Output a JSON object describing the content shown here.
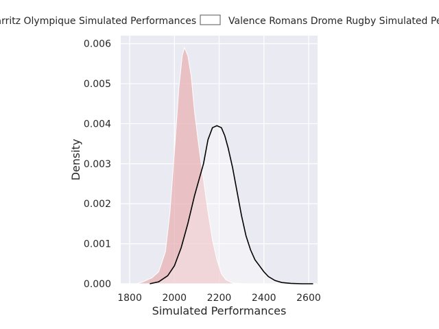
{
  "chart_data": {
    "type": "area",
    "title": "",
    "xlabel": "Simulated Performances",
    "ylabel": "Density",
    "xlim": [
      1760,
      2640
    ],
    "ylim": [
      0,
      0.0062
    ],
    "xticks": [
      1800,
      2000,
      2200,
      2400,
      2600
    ],
    "yticks": [
      0.0,
      0.001,
      0.002,
      0.003,
      0.004,
      0.005,
      0.006
    ],
    "xtick_labels": [
      "1800",
      "2000",
      "2200",
      "2400",
      "2600"
    ],
    "ytick_labels": [
      "0.000",
      "0.001",
      "0.002",
      "0.003",
      "0.004",
      "0.005",
      "0.006"
    ],
    "grid": true,
    "legend_position": "top",
    "series": [
      {
        "name": "Biarritz Olympique Simulated Performances",
        "color": "#e8b3b6",
        "edge_color": "#ffffff",
        "filled": true,
        "x": [
          1830,
          1860,
          1900,
          1930,
          1960,
          1980,
          2000,
          2020,
          2035,
          2045,
          2060,
          2075,
          2090,
          2110,
          2130,
          2150,
          2170,
          2190,
          2210,
          2230,
          2260,
          2320
        ],
        "y": [
          0.0,
          5e-05,
          0.00015,
          0.0003,
          0.0008,
          0.0018,
          0.0033,
          0.0049,
          0.0057,
          0.0059,
          0.0057,
          0.0052,
          0.0043,
          0.0034,
          0.0026,
          0.0018,
          0.0011,
          0.0006,
          0.00025,
          0.0001,
          2e-05,
          0.0
        ]
      },
      {
        "name": "Valence Romans Drome Rugby Simulated Performances",
        "color": "#ffffff",
        "edge_color": "#000000",
        "filled": false,
        "x": [
          1890,
          1930,
          1970,
          2000,
          2030,
          2060,
          2090,
          2110,
          2130,
          2150,
          2170,
          2190,
          2210,
          2225,
          2240,
          2260,
          2280,
          2300,
          2320,
          2340,
          2360,
          2380,
          2400,
          2420,
          2450,
          2480,
          2520,
          2570,
          2620
        ],
        "y": [
          0.0,
          5e-05,
          0.0002,
          0.00045,
          0.0009,
          0.0015,
          0.0022,
          0.0026,
          0.003,
          0.0036,
          0.0039,
          0.00395,
          0.0039,
          0.0037,
          0.0034,
          0.0029,
          0.0023,
          0.0017,
          0.0012,
          0.00085,
          0.0006,
          0.00045,
          0.0003,
          0.00018,
          8e-05,
          3e-05,
          1e-05,
          0.0,
          0.0
        ]
      }
    ]
  }
}
